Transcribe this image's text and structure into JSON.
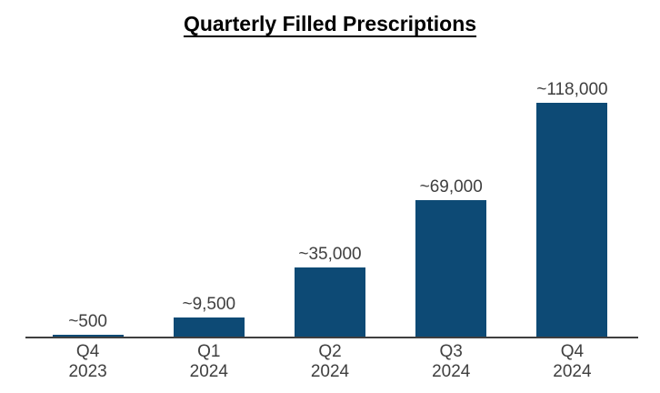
{
  "chart_data": {
    "type": "bar",
    "title": "Quarterly Filled Prescriptions",
    "categories": [
      [
        "Q4",
        "2023"
      ],
      [
        "Q1",
        "2024"
      ],
      [
        "Q2",
        "2024"
      ],
      [
        "Q3",
        "2024"
      ],
      [
        "Q4",
        "2024"
      ]
    ],
    "values": [
      500,
      9500,
      35000,
      69000,
      118000
    ],
    "value_labels": [
      "~500",
      "~9,500",
      "~35,000",
      "~69,000",
      "~118,000"
    ],
    "xlabel": "",
    "ylabel": "",
    "ylim": [
      0,
      118000
    ],
    "grid": "off",
    "legend": "none",
    "bar_color": "#0d4a75",
    "axis_color": "#3f3f3f",
    "label_color": "#3f3f3f",
    "title_color": "#000000"
  }
}
